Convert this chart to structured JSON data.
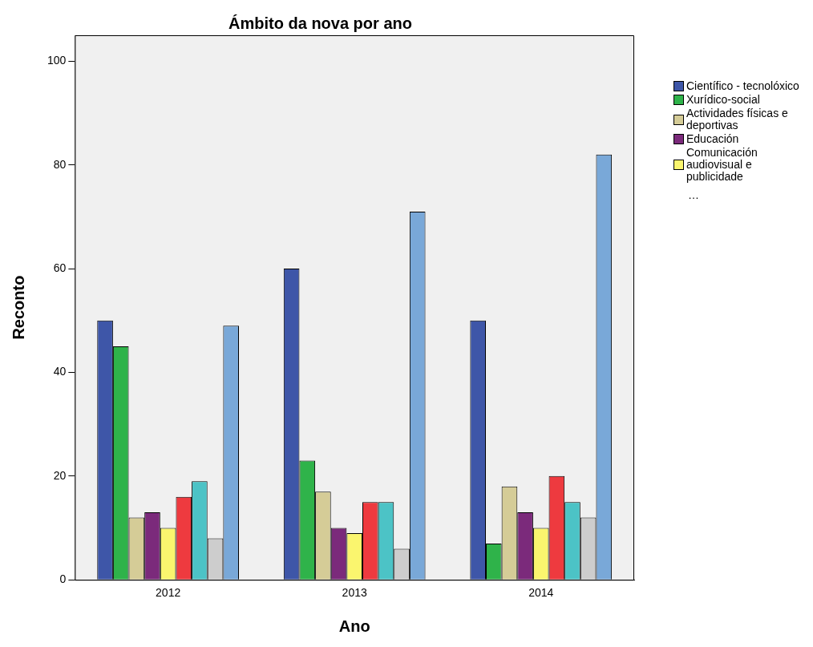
{
  "chart_data": {
    "type": "bar",
    "title": "Ámbito da nova por ano",
    "xlabel": "Ano",
    "ylabel": "Reconto",
    "categories": [
      "2012",
      "2013",
      "2014"
    ],
    "series": [
      {
        "name": "Científico - tecnolóxico",
        "color": "#3e56a8",
        "values": [
          50,
          60,
          50
        ]
      },
      {
        "name": "Xurídico-social",
        "color": "#2fb34a",
        "values": [
          45,
          23,
          7
        ]
      },
      {
        "name": "Actividades físicas e deportivas",
        "color": "#d5cc97",
        "values": [
          12,
          17,
          18
        ]
      },
      {
        "name": "Educación",
        "color": "#7b2a7b",
        "values": [
          13,
          10,
          13
        ]
      },
      {
        "name": "Comunicación audiovisual e publicidade",
        "color": "#faf56e",
        "values": [
          10,
          9,
          10
        ]
      },
      {
        "color": "#ee3a3f",
        "values": [
          16,
          15,
          20
        ]
      },
      {
        "color": "#4cc3c6",
        "values": [
          19,
          15,
          15
        ]
      },
      {
        "color": "#cdcdcd",
        "values": [
          8,
          6,
          12
        ]
      },
      {
        "color": "#79a8d8",
        "values": [
          49,
          71,
          82
        ]
      }
    ],
    "ylim": [
      0,
      105
    ],
    "yticks": [
      0,
      20,
      40,
      60,
      80,
      100
    ],
    "grid": false,
    "legend": "right",
    "annotations": [
      "…"
    ]
  }
}
